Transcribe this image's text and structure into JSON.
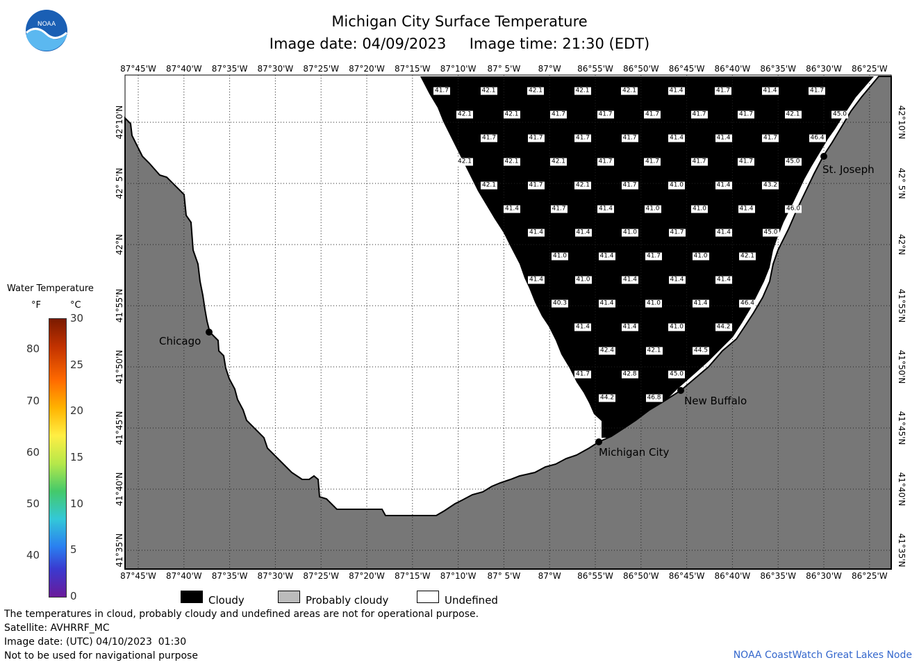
{
  "title": "Michigan City Surface Temperature",
  "subtitle": "Image date: 04/09/2023     Image time: 21:30 (EDT)",
  "logo_text": "NOAA",
  "lon_labels": [
    "87°45'W",
    "87°40'W",
    "87°35'W",
    "87°30'W",
    "87°25'W",
    "87°20'W",
    "87°15'W",
    "87°10'W",
    "87° 5'W",
    "87°W",
    "86°55'W",
    "86°50'W",
    "86°45'W",
    "86°40'W",
    "86°35'W",
    "86°30'W",
    "86°25'W"
  ],
  "lat_labels": [
    "42°10'N",
    "42° 5'N",
    "42°N",
    "41°55'N",
    "41°50'N",
    "41°45'N",
    "41°40'N",
    "41°35'N"
  ],
  "legend": {
    "title": "Water Temperature",
    "unit_f": "°F",
    "unit_c": "°C",
    "f_ticks": [
      "80",
      "70",
      "60",
      "50",
      "40"
    ],
    "c_ticks": [
      "30",
      "25",
      "20",
      "15",
      "10",
      "5",
      "0"
    ],
    "f_range": [
      32,
      86
    ],
    "c_range": [
      0,
      30
    ]
  },
  "swatches": [
    {
      "label": "Cloudy",
      "color": "#000000"
    },
    {
      "label": "Probably cloudy",
      "color": "#bbbbbb"
    },
    {
      "label": "Undefined",
      "color": "#ffffff"
    }
  ],
  "cities": [
    {
      "name": "Chicago"
    },
    {
      "name": "Michigan City"
    },
    {
      "name": "New Buffalo"
    },
    {
      "name": "St. Joseph"
    }
  ],
  "footer": {
    "line1": "The temperatures in cloud, probably cloudy and undefined areas are not for operational purpose.",
    "line2": "Satellite: AVHRRF_MC",
    "line3": "Image date: (UTC) 04/10/2023  01:30",
    "line4": "Not to be used for navigational purpose",
    "credit": "NOAA CoastWatch Great Lakes Node"
  },
  "colors": {
    "land": "#777777",
    "cloudy": "#000000",
    "undefined": "#ffffff"
  },
  "temperature_rows": [
    [
      "41.7",
      "42.1",
      "42.1",
      "42.1",
      "42.1",
      "41.4",
      "41.7",
      "41.4",
      "41.7"
    ],
    [
      "42.1",
      "42.1",
      "41.7",
      "41.7",
      "41.7",
      "41.7",
      "41.7",
      "42.1",
      "45.0"
    ],
    [
      "41.7",
      "41.7",
      "41.7",
      "41.7",
      "41.4",
      "41.4",
      "41.7",
      "46.4"
    ],
    [
      "42.1",
      "42.1",
      "42.1",
      "41.7",
      "41.7",
      "41.7",
      "41.7",
      "45.0"
    ],
    [
      "42.1",
      "41.7",
      "42.1",
      "41.7",
      "41.0",
      "41.4",
      "43.2"
    ],
    [
      "41.4",
      "41.7",
      "41.4",
      "41.0",
      "41.0",
      "41.4",
      "46.0"
    ],
    [
      "41.4",
      "41.4",
      "41.0",
      "41.7",
      "41.4",
      "45.0"
    ],
    [
      "41.0",
      "41.4",
      "41.7",
      "41.0",
      "42.1"
    ],
    [
      "41.4",
      "41.0",
      "41.4",
      "41.4",
      "41.4"
    ],
    [
      "40.3",
      "41.4",
      "41.0",
      "41.4",
      "46.4"
    ],
    [
      "41.4",
      "41.4",
      "41.0",
      "44.2"
    ],
    [
      "42.4",
      "42.1",
      "44.5"
    ],
    [
      "41.7",
      "42.8",
      "45.0"
    ],
    [
      "44.2",
      "46.8"
    ]
  ]
}
